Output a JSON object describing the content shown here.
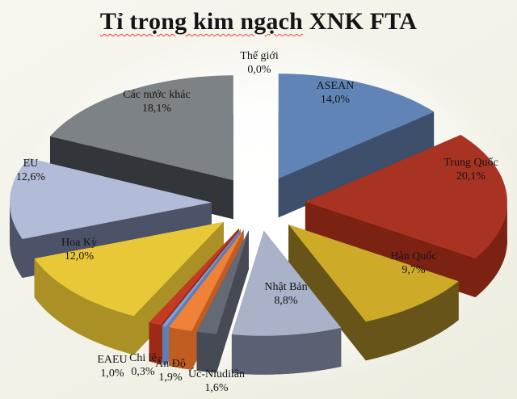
{
  "title": {
    "text": "Tỉ trọng kim ngạch XNK FTA",
    "underlined_part": "Tỉ trọng kim ngạch",
    "plain_part": "XNK FTA",
    "color": "#141414",
    "spellcheck_underline_color": "#e8392e"
  },
  "chart_data": {
    "type": "pie",
    "style": "3d-exploded",
    "title": "Tỉ trọng kim ngạch XNK FTA",
    "value_unit": "%",
    "decimal_separator": ",",
    "start_angle_deg": 0,
    "direction": "clockwise",
    "legend": "none",
    "data_labels": "category-name-and-percent",
    "background_top": "#f7f6ef",
    "background_bottom": "#edecdf",
    "slices": [
      {
        "id": "the-gioi",
        "label": "Thế giới",
        "value": 0.0,
        "value_label": "0,0%",
        "top_color": null,
        "side_color": null
      },
      {
        "id": "asean",
        "label": "ASEAN",
        "value": 14.0,
        "value_label": "14,0%",
        "top_color": "#6184b7",
        "side_color": "#3d4f6b"
      },
      {
        "id": "trung-quoc",
        "label": "Trung Quốc",
        "value": 20.1,
        "value_label": "20,1%",
        "top_color": "#a83322",
        "side_color": "#7c2213"
      },
      {
        "id": "han-quoc",
        "label": "Hàn Quốc",
        "value": 9.7,
        "value_label": "9,7%",
        "top_color": "#cdaa28",
        "side_color": "#665418"
      },
      {
        "id": "nhat-ban",
        "label": "Nhật Bản",
        "value": 8.8,
        "value_label": "8,8%",
        "top_color": "#a9b2c8",
        "side_color": "#5a6172"
      },
      {
        "id": "uc-niudilan",
        "label": "Úc-Niudilân",
        "value": 1.6,
        "value_label": "1,6%",
        "top_color": "#636975",
        "side_color": "#454a54"
      },
      {
        "id": "an-do",
        "label": "Ấn Độ",
        "value": 1.9,
        "value_label": "1,9%",
        "top_color": "#ee8238",
        "side_color": "#c15d20"
      },
      {
        "id": "chi-le",
        "label": "Chi lê",
        "value": 0.3,
        "value_label": "0,3%",
        "top_color": "#7ea2d8",
        "side_color": "#5b80b8"
      },
      {
        "id": "eaeu",
        "label": "EAEU",
        "value": 1.0,
        "value_label": "1,0%",
        "top_color": "#c23b22",
        "side_color": "#9c2a16"
      },
      {
        "id": "hoa-ky",
        "label": "Hoa Kỳ",
        "value": 12.0,
        "value_label": "12,0%",
        "top_color": "#e9c838",
        "side_color": "#ab9025"
      },
      {
        "id": "eu",
        "label": "EU",
        "value": 12.6,
        "value_label": "12,6%",
        "top_color": "#b2bbd7",
        "side_color": "#4c5267"
      },
      {
        "id": "cac-nuoc-khac",
        "label": "Các nước khác",
        "value": 18.1,
        "value_label": "18,1%",
        "top_color": "#7d8286",
        "side_color": "#323539"
      }
    ]
  }
}
